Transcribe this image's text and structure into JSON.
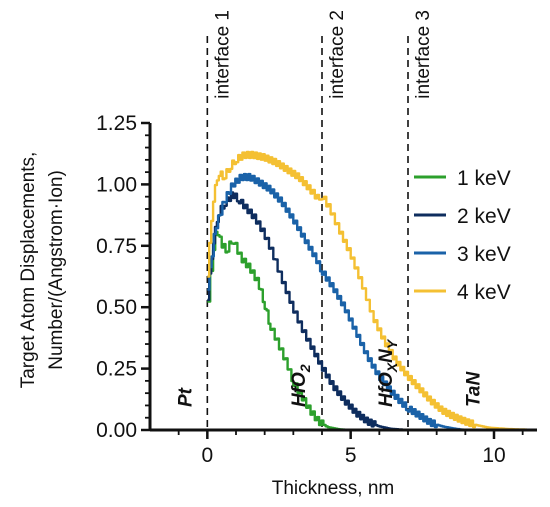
{
  "chart_data": {
    "type": "line",
    "title": "",
    "xlabel": "Thickness, nm",
    "ylabel_line1": "Target Atom Displacements,",
    "ylabel_line2": "Number/(Angstrom·Ion)",
    "xlim": [
      -2,
      11.5
    ],
    "ylim": [
      0,
      1.25
    ],
    "x_ticks": [
      0,
      5,
      10
    ],
    "x_tick_labels": [
      "0",
      "5",
      "10"
    ],
    "y_ticks": [
      0,
      0.25,
      0.5,
      0.75,
      1.0,
      1.25
    ],
    "y_tick_labels": [
      "0.00",
      "0.25",
      "0.50",
      "0.75",
      "1.00",
      "1.25"
    ],
    "grid": false,
    "legend_position": "right",
    "interfaces": [
      {
        "x": 0,
        "label": "interface 1"
      },
      {
        "x": 4,
        "label": "interface 2"
      },
      {
        "x": 7,
        "label": "interface 3"
      }
    ],
    "layers": [
      {
        "x": -0.55,
        "label": "Pt"
      },
      {
        "x": 3.4,
        "label": "HfO",
        "sub": "2"
      },
      {
        "x": 6.45,
        "label": "HfO",
        "sub": "X",
        "label2": "N",
        "sub2": "Y"
      },
      {
        "x": 9.5,
        "label": "TaN"
      }
    ],
    "series": [
      {
        "name": "1 keV",
        "color": "#2ca02c",
        "points": [
          [
            0,
            0.47
          ],
          [
            0.1,
            0.6
          ],
          [
            0.2,
            0.72
          ],
          [
            0.35,
            0.82
          ],
          [
            0.5,
            0.76
          ],
          [
            0.7,
            0.73
          ],
          [
            0.9,
            0.78
          ],
          [
            1.2,
            0.7
          ],
          [
            1.5,
            0.66
          ],
          [
            1.8,
            0.6
          ],
          [
            2.0,
            0.52
          ],
          [
            2.2,
            0.43
          ],
          [
            2.5,
            0.35
          ],
          [
            2.8,
            0.27
          ],
          [
            3.0,
            0.2
          ],
          [
            3.3,
            0.14
          ],
          [
            3.6,
            0.08
          ],
          [
            3.9,
            0.035
          ],
          [
            4.2,
            0.012
          ],
          [
            4.6,
            0.003
          ],
          [
            5.0,
            0.0
          ]
        ]
      },
      {
        "name": "2 keV",
        "color": "#0e2d5e",
        "points": [
          [
            0,
            0.5
          ],
          [
            0.2,
            0.75
          ],
          [
            0.4,
            0.88
          ],
          [
            0.6,
            0.92
          ],
          [
            0.9,
            0.96
          ],
          [
            1.1,
            0.94
          ],
          [
            1.4,
            0.9
          ],
          [
            1.7,
            0.86
          ],
          [
            2.0,
            0.8
          ],
          [
            2.3,
            0.72
          ],
          [
            2.6,
            0.62
          ],
          [
            3.0,
            0.5
          ],
          [
            3.3,
            0.42
          ],
          [
            3.6,
            0.35
          ],
          [
            4.0,
            0.26
          ],
          [
            4.4,
            0.18
          ],
          [
            4.8,
            0.12
          ],
          [
            5.2,
            0.07
          ],
          [
            5.6,
            0.035
          ],
          [
            6.0,
            0.015
          ],
          [
            6.4,
            0.005
          ],
          [
            7.0,
            0.0
          ]
        ]
      },
      {
        "name": "3 keV",
        "color": "#1a62a8",
        "points": [
          [
            0,
            0.55
          ],
          [
            0.3,
            0.82
          ],
          [
            0.6,
            0.93
          ],
          [
            0.9,
            1.0
          ],
          [
            1.2,
            1.03
          ],
          [
            1.5,
            1.03
          ],
          [
            1.8,
            1.01
          ],
          [
            2.2,
            0.98
          ],
          [
            2.6,
            0.93
          ],
          [
            3.0,
            0.86
          ],
          [
            3.4,
            0.78
          ],
          [
            3.8,
            0.7
          ],
          [
            4.0,
            0.65
          ],
          [
            4.4,
            0.58
          ],
          [
            4.8,
            0.5
          ],
          [
            5.2,
            0.4
          ],
          [
            5.6,
            0.3
          ],
          [
            6.0,
            0.22
          ],
          [
            6.4,
            0.16
          ],
          [
            6.8,
            0.11
          ],
          [
            7.0,
            0.09
          ],
          [
            7.4,
            0.06
          ],
          [
            7.8,
            0.03
          ],
          [
            8.2,
            0.015
          ],
          [
            8.6,
            0.006
          ],
          [
            9.0,
            0.0
          ]
        ]
      },
      {
        "name": "4 keV",
        "color": "#f4c033",
        "points": [
          [
            0,
            0.58
          ],
          [
            0.2,
            0.92
          ],
          [
            0.4,
            1.05
          ],
          [
            0.6,
            1.03
          ],
          [
            0.8,
            1.07
          ],
          [
            1.0,
            1.1
          ],
          [
            1.3,
            1.12
          ],
          [
            1.6,
            1.12
          ],
          [
            2.0,
            1.11
          ],
          [
            2.4,
            1.09
          ],
          [
            2.8,
            1.06
          ],
          [
            3.2,
            1.03
          ],
          [
            3.6,
            0.98
          ],
          [
            3.9,
            0.94
          ],
          [
            4.0,
            0.96
          ],
          [
            4.3,
            0.9
          ],
          [
            4.6,
            0.82
          ],
          [
            5.0,
            0.72
          ],
          [
            5.4,
            0.6
          ],
          [
            5.8,
            0.46
          ],
          [
            6.2,
            0.36
          ],
          [
            6.6,
            0.28
          ],
          [
            7.0,
            0.22
          ],
          [
            7.4,
            0.17
          ],
          [
            7.8,
            0.12
          ],
          [
            8.2,
            0.08
          ],
          [
            8.6,
            0.055
          ],
          [
            9.0,
            0.035
          ],
          [
            9.4,
            0.02
          ],
          [
            9.8,
            0.01
          ],
          [
            10.5,
            0.004
          ],
          [
            11.5,
            0.0
          ]
        ]
      }
    ]
  }
}
